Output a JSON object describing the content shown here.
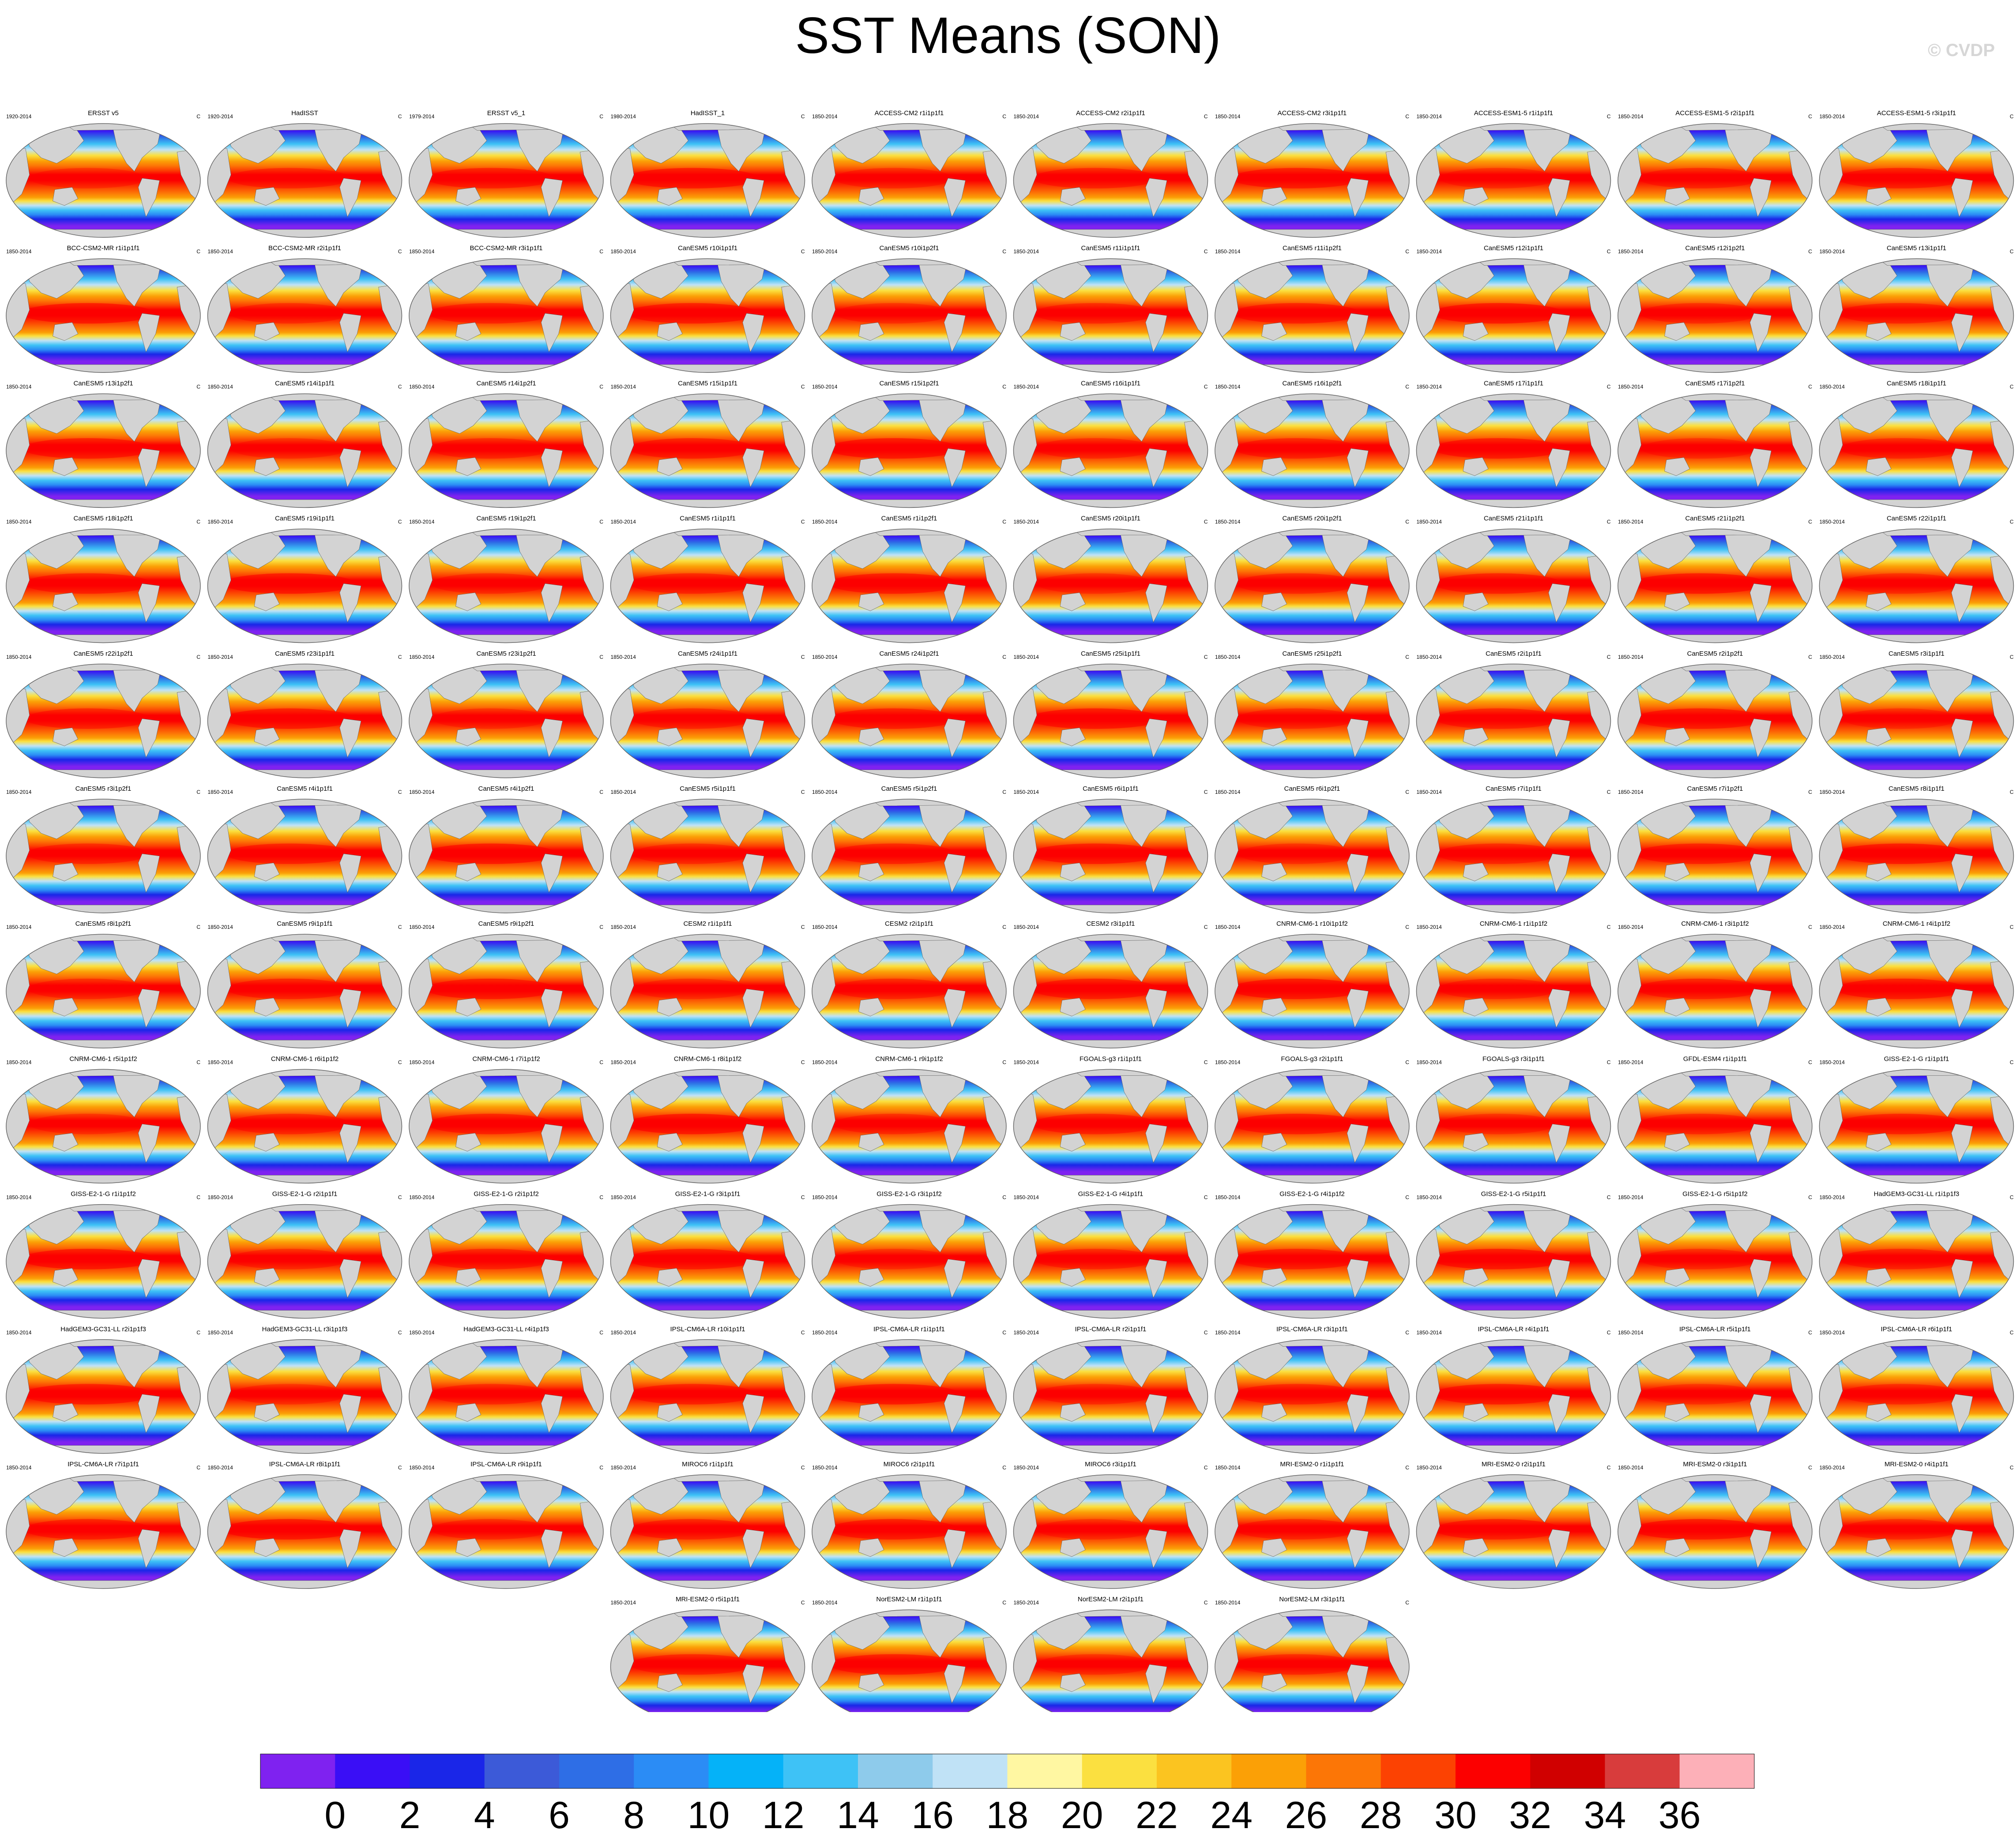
{
  "figure": {
    "title": "SST Means (SON)",
    "credit": "© CVDP"
  },
  "chart_data": {
    "type": "heatmap",
    "map_projection": "global-ellipse",
    "grid": false,
    "units_label": "C",
    "panels": [
      {
        "name": "ERSST v5",
        "period": "1920-2014"
      },
      {
        "name": "HadISST",
        "period": "1920-2014"
      },
      {
        "name": "ERSST v5_1",
        "period": "1979-2014"
      },
      {
        "name": "HadISST_1",
        "period": "1980-2014"
      },
      {
        "name": "ACCESS-CM2 r1i1p1f1",
        "period": "1850-2014"
      },
      {
        "name": "ACCESS-CM2 r2i1p1f1",
        "period": "1850-2014"
      },
      {
        "name": "ACCESS-CM2 r3i1p1f1",
        "period": "1850-2014"
      },
      {
        "name": "ACCESS-ESM1-5 r1i1p1f1",
        "period": "1850-2014"
      },
      {
        "name": "ACCESS-ESM1-5 r2i1p1f1",
        "period": "1850-2014"
      },
      {
        "name": "ACCESS-ESM1-5 r3i1p1f1",
        "period": "1850-2014"
      },
      {
        "name": "BCC-CSM2-MR r1i1p1f1",
        "period": "1850-2014"
      },
      {
        "name": "BCC-CSM2-MR r2i1p1f1",
        "period": "1850-2014"
      },
      {
        "name": "BCC-CSM2-MR r3i1p1f1",
        "period": "1850-2014"
      },
      {
        "name": "CanESM5 r10i1p1f1",
        "period": "1850-2014"
      },
      {
        "name": "CanESM5 r10i1p2f1",
        "period": "1850-2014"
      },
      {
        "name": "CanESM5 r11i1p1f1",
        "period": "1850-2014"
      },
      {
        "name": "CanESM5 r11i1p2f1",
        "period": "1850-2014"
      },
      {
        "name": "CanESM5 r12i1p1f1",
        "period": "1850-2014"
      },
      {
        "name": "CanESM5 r12i1p2f1",
        "period": "1850-2014"
      },
      {
        "name": "CanESM5 r13i1p1f1",
        "period": "1850-2014"
      },
      {
        "name": "CanESM5 r13i1p2f1",
        "period": "1850-2014"
      },
      {
        "name": "CanESM5 r14i1p1f1",
        "period": "1850-2014"
      },
      {
        "name": "CanESM5 r14i1p2f1",
        "period": "1850-2014"
      },
      {
        "name": "CanESM5 r15i1p1f1",
        "period": "1850-2014"
      },
      {
        "name": "CanESM5 r15i1p2f1",
        "period": "1850-2014"
      },
      {
        "name": "CanESM5 r16i1p1f1",
        "period": "1850-2014"
      },
      {
        "name": "CanESM5 r16i1p2f1",
        "period": "1850-2014"
      },
      {
        "name": "CanESM5 r17i1p1f1",
        "period": "1850-2014"
      },
      {
        "name": "CanESM5 r17i1p2f1",
        "period": "1850-2014"
      },
      {
        "name": "CanESM5 r18i1p1f1",
        "period": "1850-2014"
      },
      {
        "name": "CanESM5 r18i1p2f1",
        "period": "1850-2014"
      },
      {
        "name": "CanESM5 r19i1p1f1",
        "period": "1850-2014"
      },
      {
        "name": "CanESM5 r19i1p2f1",
        "period": "1850-2014"
      },
      {
        "name": "CanESM5 r1i1p1f1",
        "period": "1850-2014"
      },
      {
        "name": "CanESM5 r1i1p2f1",
        "period": "1850-2014"
      },
      {
        "name": "CanESM5 r20i1p1f1",
        "period": "1850-2014"
      },
      {
        "name": "CanESM5 r20i1p2f1",
        "period": "1850-2014"
      },
      {
        "name": "CanESM5 r21i1p1f1",
        "period": "1850-2014"
      },
      {
        "name": "CanESM5 r21i1p2f1",
        "period": "1850-2014"
      },
      {
        "name": "CanESM5 r22i1p1f1",
        "period": "1850-2014"
      },
      {
        "name": "CanESM5 r22i1p2f1",
        "period": "1850-2014"
      },
      {
        "name": "CanESM5 r23i1p1f1",
        "period": "1850-2014"
      },
      {
        "name": "CanESM5 r23i1p2f1",
        "period": "1850-2014"
      },
      {
        "name": "CanESM5 r24i1p1f1",
        "period": "1850-2014"
      },
      {
        "name": "CanESM5 r24i1p2f1",
        "period": "1850-2014"
      },
      {
        "name": "CanESM5 r25i1p1f1",
        "period": "1850-2014"
      },
      {
        "name": "CanESM5 r25i1p2f1",
        "period": "1850-2014"
      },
      {
        "name": "CanESM5 r2i1p1f1",
        "period": "1850-2014"
      },
      {
        "name": "CanESM5 r2i1p2f1",
        "period": "1850-2014"
      },
      {
        "name": "CanESM5 r3i1p1f1",
        "period": "1850-2014"
      },
      {
        "name": "CanESM5 r3i1p2f1",
        "period": "1850-2014"
      },
      {
        "name": "CanESM5 r4i1p1f1",
        "period": "1850-2014"
      },
      {
        "name": "CanESM5 r4i1p2f1",
        "period": "1850-2014"
      },
      {
        "name": "CanESM5 r5i1p1f1",
        "period": "1850-2014"
      },
      {
        "name": "CanESM5 r5i1p2f1",
        "period": "1850-2014"
      },
      {
        "name": "CanESM5 r6i1p1f1",
        "period": "1850-2014"
      },
      {
        "name": "CanESM5 r6i1p2f1",
        "period": "1850-2014"
      },
      {
        "name": "CanESM5 r7i1p1f1",
        "period": "1850-2014"
      },
      {
        "name": "CanESM5 r7i1p2f1",
        "period": "1850-2014"
      },
      {
        "name": "CanESM5 r8i1p1f1",
        "period": "1850-2014"
      },
      {
        "name": "CanESM5 r8i1p2f1",
        "period": "1850-2014"
      },
      {
        "name": "CanESM5 r9i1p1f1",
        "period": "1850-2014"
      },
      {
        "name": "CanESM5 r9i1p2f1",
        "period": "1850-2014"
      },
      {
        "name": "CESM2 r1i1p1f1",
        "period": "1850-2014"
      },
      {
        "name": "CESM2 r2i1p1f1",
        "period": "1850-2014"
      },
      {
        "name": "CESM2 r3i1p1f1",
        "period": "1850-2014"
      },
      {
        "name": "CNRM-CM6-1 r10i1p1f2",
        "period": "1850-2014"
      },
      {
        "name": "CNRM-CM6-1 r1i1p1f2",
        "period": "1850-2014"
      },
      {
        "name": "CNRM-CM6-1 r3i1p1f2",
        "period": "1850-2014"
      },
      {
        "name": "CNRM-CM6-1 r4i1p1f2",
        "period": "1850-2014"
      },
      {
        "name": "CNRM-CM6-1 r5i1p1f2",
        "period": "1850-2014"
      },
      {
        "name": "CNRM-CM6-1 r6i1p1f2",
        "period": "1850-2014"
      },
      {
        "name": "CNRM-CM6-1 r7i1p1f2",
        "period": "1850-2014"
      },
      {
        "name": "CNRM-CM6-1 r8i1p1f2",
        "period": "1850-2014"
      },
      {
        "name": "CNRM-CM6-1 r9i1p1f2",
        "period": "1850-2014"
      },
      {
        "name": "FGOALS-g3 r1i1p1f1",
        "period": "1850-2014"
      },
      {
        "name": "FGOALS-g3 r2i1p1f1",
        "period": "1850-2014"
      },
      {
        "name": "FGOALS-g3 r3i1p1f1",
        "period": "1850-2014"
      },
      {
        "name": "GFDL-ESM4 r1i1p1f1",
        "period": "1850-2014"
      },
      {
        "name": "GISS-E2-1-G r1i1p1f1",
        "period": "1850-2014"
      },
      {
        "name": "GISS-E2-1-G r1i1p1f2",
        "period": "1850-2014"
      },
      {
        "name": "GISS-E2-1-G r2i1p1f1",
        "period": "1850-2014"
      },
      {
        "name": "GISS-E2-1-G r2i1p1f2",
        "period": "1850-2014"
      },
      {
        "name": "GISS-E2-1-G r3i1p1f1",
        "period": "1850-2014"
      },
      {
        "name": "GISS-E2-1-G r3i1p1f2",
        "period": "1850-2014"
      },
      {
        "name": "GISS-E2-1-G r4i1p1f1",
        "period": "1850-2014"
      },
      {
        "name": "GISS-E2-1-G r4i1p1f2",
        "period": "1850-2014"
      },
      {
        "name": "GISS-E2-1-G r5i1p1f1",
        "period": "1850-2014"
      },
      {
        "name": "GISS-E2-1-G r5i1p1f2",
        "period": "1850-2014"
      },
      {
        "name": "HadGEM3-GC31-LL r1i1p1f3",
        "period": "1850-2014"
      },
      {
        "name": "HadGEM3-GC31-LL r2i1p1f3",
        "period": "1850-2014"
      },
      {
        "name": "HadGEM3-GC31-LL r3i1p1f3",
        "period": "1850-2014"
      },
      {
        "name": "HadGEM3-GC31-LL r4i1p1f3",
        "period": "1850-2014"
      },
      {
        "name": "IPSL-CM6A-LR r10i1p1f1",
        "period": "1850-2014"
      },
      {
        "name": "IPSL-CM6A-LR r1i1p1f1",
        "period": "1850-2014"
      },
      {
        "name": "IPSL-CM6A-LR r2i1p1f1",
        "period": "1850-2014"
      },
      {
        "name": "IPSL-CM6A-LR r3i1p1f1",
        "period": "1850-2014"
      },
      {
        "name": "IPSL-CM6A-LR r4i1p1f1",
        "period": "1850-2014"
      },
      {
        "name": "IPSL-CM6A-LR r5i1p1f1",
        "period": "1850-2014"
      },
      {
        "name": "IPSL-CM6A-LR r6i1p1f1",
        "period": "1850-2014"
      },
      {
        "name": "IPSL-CM6A-LR r7i1p1f1",
        "period": "1850-2014"
      },
      {
        "name": "IPSL-CM6A-LR r8i1p1f1",
        "period": "1850-2014"
      },
      {
        "name": "IPSL-CM6A-LR r9i1p1f1",
        "period": "1850-2014"
      },
      {
        "name": "MIROC6 r1i1p1f1",
        "period": "1850-2014"
      },
      {
        "name": "MIROC6 r2i1p1f1",
        "period": "1850-2014"
      },
      {
        "name": "MIROC6 r3i1p1f1",
        "period": "1850-2014"
      },
      {
        "name": "MRI-ESM2-0 r1i1p1f1",
        "period": "1850-2014"
      },
      {
        "name": "MRI-ESM2-0 r2i1p1f1",
        "period": "1850-2014"
      },
      {
        "name": "MRI-ESM2-0 r3i1p1f1",
        "period": "1850-2014"
      },
      {
        "name": "MRI-ESM2-0 r4i1p1f1",
        "period": "1850-2014"
      },
      {
        "name": "MRI-ESM2-0 r5i1p1f1",
        "period": "1850-2014"
      },
      {
        "name": "NorESM2-LM r1i1p1f1",
        "period": "1850-2014"
      },
      {
        "name": "NorESM2-LM r2i1p1f1",
        "period": "1850-2014"
      },
      {
        "name": "NorESM2-LM r3i1p1f1",
        "period": "1850-2014"
      }
    ],
    "colorbar": {
      "ticks": [
        "0",
        "2",
        "4",
        "6",
        "8",
        "10",
        "12",
        "14",
        "16",
        "18",
        "20",
        "22",
        "24",
        "26",
        "28",
        "30",
        "32",
        "34",
        "36"
      ],
      "colors": [
        "#7f22f0",
        "#3a0ef6",
        "#1a26e8",
        "#3c5ad8",
        "#2e6ee6",
        "#2b8cf5",
        "#05b2f8",
        "#3ec2f6",
        "#8ecbeb",
        "#c0e2f6",
        "#fff7a2",
        "#fbe040",
        "#fbc420",
        "#fba006",
        "#fc7606",
        "#fc4202",
        "#fc0000",
        "#d00000",
        "#d83c3c",
        "#fdb0b8"
      ],
      "range": [
        -2,
        38
      ]
    },
    "land_color": "#d3d3d3"
  }
}
